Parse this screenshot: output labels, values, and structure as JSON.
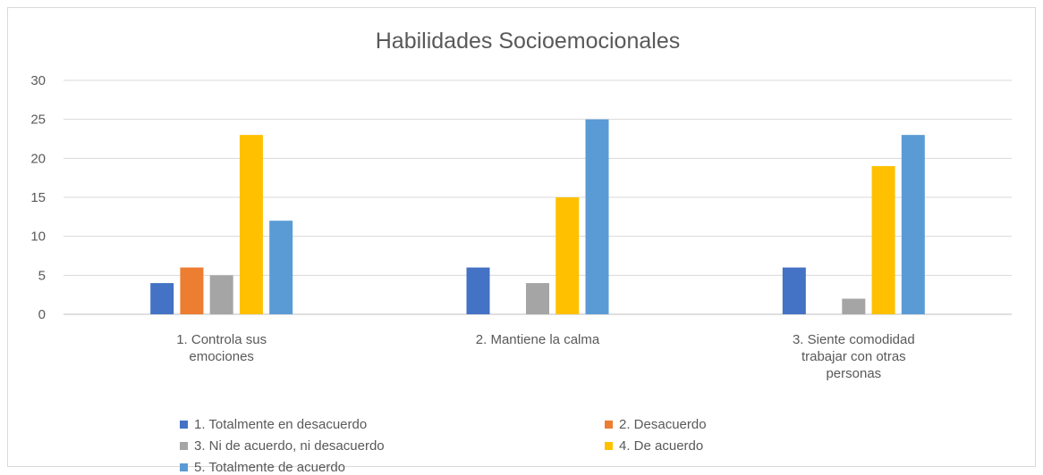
{
  "chart_data": {
    "type": "bar",
    "title": "Habilidades Socioemocionales",
    "categories": [
      "1. Controla sus emociones",
      "2. Mantiene la calma",
      "3. Siente comodidad trabajar con otras personas"
    ],
    "category_lines": [
      [
        "1. Controla sus",
        "emociones"
      ],
      [
        "2. Mantiene la calma"
      ],
      [
        "3. Siente comodidad",
        "trabajar con otras",
        "personas"
      ]
    ],
    "series": [
      {
        "name": "1. Totalmente en desacuerdo",
        "color": "#4472C4",
        "values": [
          4,
          6,
          6
        ]
      },
      {
        "name": "2. Desacuerdo",
        "color": "#ED7D31",
        "values": [
          6,
          0,
          0
        ]
      },
      {
        "name": "3. Ni de acuerdo, ni desacuerdo",
        "color": "#A5A5A5",
        "values": [
          5,
          4,
          2
        ]
      },
      {
        "name": "4. De acuerdo",
        "color": "#FFC000",
        "values": [
          23,
          15,
          19
        ]
      },
      {
        "name": "5. Totalmente de acuerdo",
        "color": "#5B9BD5",
        "values": [
          12,
          25,
          23
        ]
      }
    ],
    "ylim": [
      0,
      30
    ],
    "yticks": [
      0,
      5,
      10,
      15,
      20,
      25,
      30
    ],
    "grid": true,
    "legend_position": "bottom",
    "xlabel": "",
    "ylabel": ""
  }
}
